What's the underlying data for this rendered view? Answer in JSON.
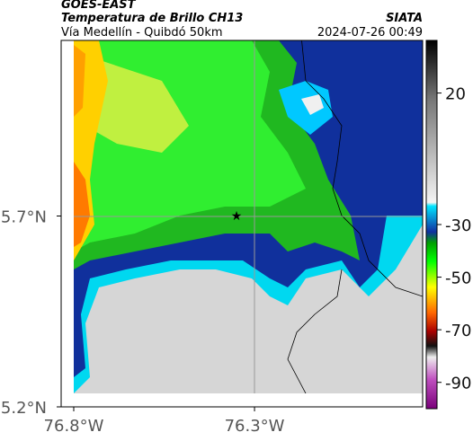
{
  "header": {
    "source": "GOES-EAST",
    "title": "Temperatura de Brillo CH13",
    "organization": "SIATA",
    "route": "Vía Medellín - Quibdó 50km",
    "datetime": "2024-07-26 00:49"
  },
  "map": {
    "xlim": [
      -76.8,
      -75.835
    ],
    "ylim": [
      5.2,
      6.16
    ],
    "xticks": [
      {
        "value": -76.8,
        "label": "76.8°W"
      },
      {
        "value": -76.3,
        "label": "76.3°W"
      }
    ],
    "yticks": [
      {
        "value": 5.7,
        "label": "5.7°N"
      },
      {
        "value": 5.2,
        "label": "5.2°N"
      }
    ]
  },
  "colorbar": {
    "lim": [
      -100,
      40
    ],
    "ticks": [
      20,
      -30,
      -50,
      -70,
      -90
    ]
  }
}
